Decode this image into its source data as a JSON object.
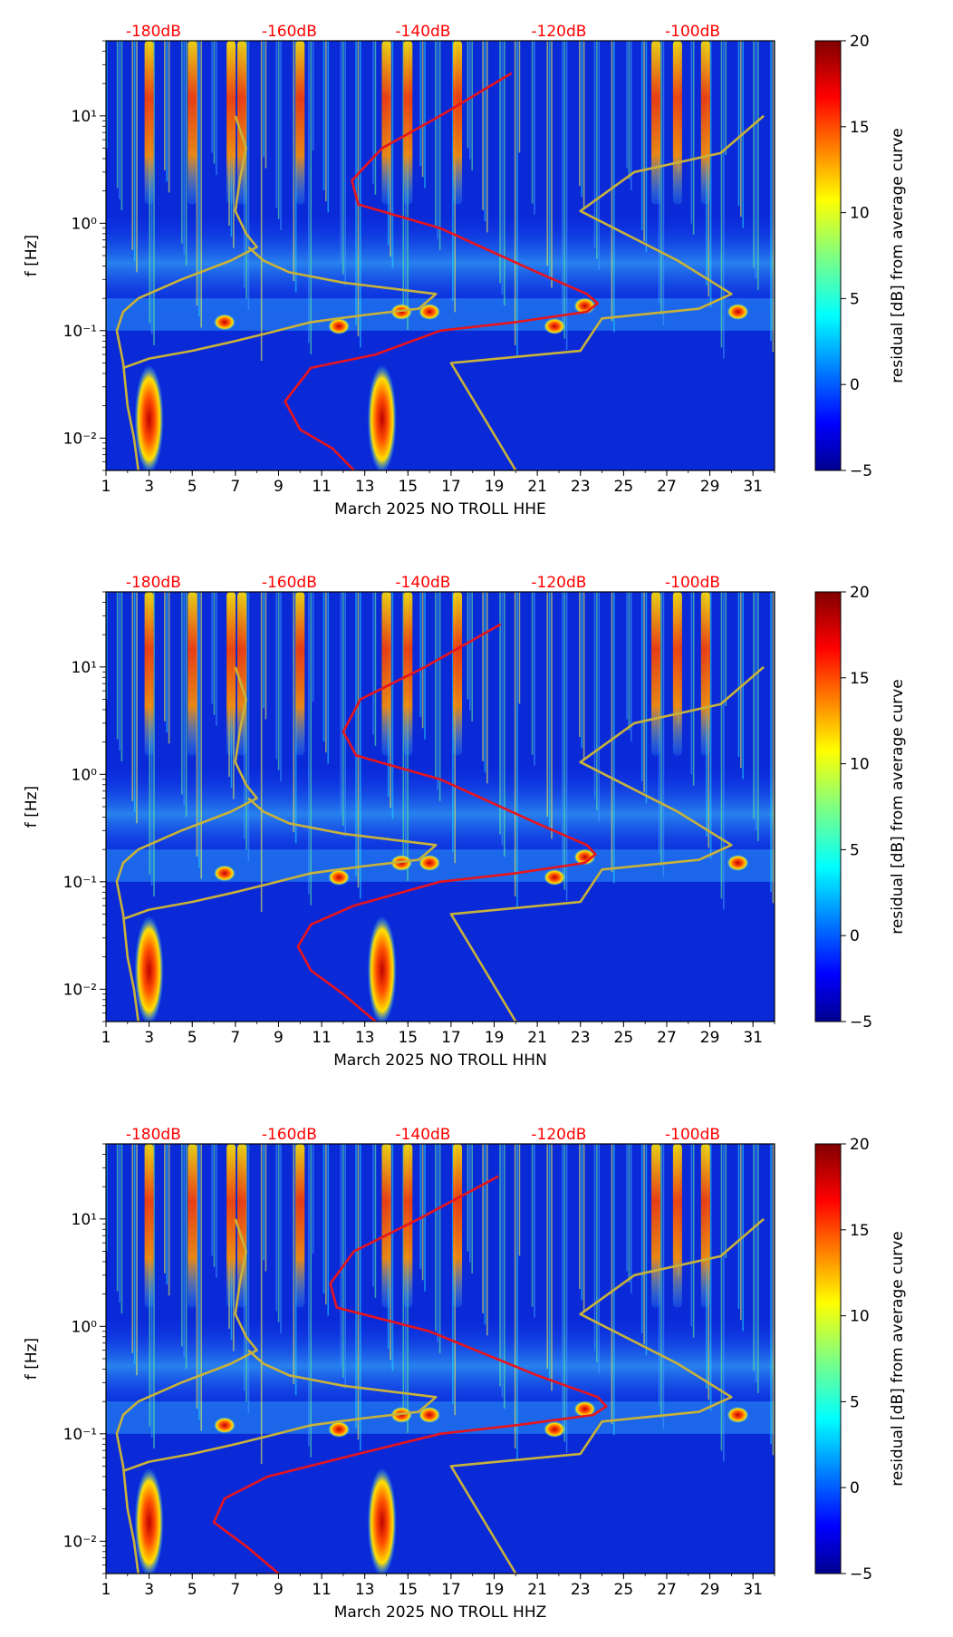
{
  "figure": {
    "colors": {
      "background": "#ffffff",
      "axis": "#000000",
      "top_labels": "#ff0000",
      "median_curve": "#e8141c",
      "noise_model_curves": "#c8b23a"
    },
    "colormap": "jet",
    "colorbar": {
      "label": "residual [dB] from average curve",
      "range": [
        -5,
        20
      ],
      "ticks": [
        "20",
        "15",
        "10",
        "5",
        "0",
        "−5"
      ],
      "tick_values": [
        20,
        15,
        10,
        5,
        0,
        -5
      ]
    }
  },
  "chart_data": [
    {
      "type": "heatmap",
      "component": "HHE",
      "xlabel": "March 2025 NO TROLL  HHE",
      "ylabel": "f [Hz]",
      "y_scale": "log",
      "xlim": [
        1,
        32
      ],
      "ylim": [
        0.005,
        50
      ],
      "x_ticks": [
        1,
        3,
        5,
        7,
        9,
        11,
        13,
        15,
        17,
        19,
        21,
        23,
        25,
        27,
        29,
        31
      ],
      "x_tick_labels": [
        "1",
        "3",
        "5",
        "7",
        "9",
        "11",
        "13",
        "15",
        "17",
        "19",
        "21",
        "23",
        "25",
        "27",
        "29",
        "31"
      ],
      "y_tick_values": [
        10,
        1,
        0.1,
        0.01
      ],
      "y_tick_labels": [
        "10¹",
        "10⁰",
        "10⁻¹",
        "10⁻²"
      ],
      "top_axis": {
        "values": [
          3.2,
          9.5,
          15.7,
          22.0,
          28.2
        ],
        "labels": [
          "-180dB",
          "-160dB",
          "-140dB",
          "-120dB",
          "-100dB"
        ]
      },
      "hot_days": [
        3,
        5,
        6.8,
        7.3,
        10,
        14,
        15,
        17.3,
        26.5,
        27.5,
        28.8
      ],
      "median_curve": {
        "name": "median PSD",
        "x": [
          19.8,
          16.5,
          13.8,
          12.4,
          12.7,
          16.5,
          21.0,
          23.3,
          23.8,
          23.3,
          20.0,
          16.5,
          13.5,
          10.5,
          9.3,
          10.0,
          11.5,
          12.5
        ],
        "f": [
          25,
          10,
          5,
          2.5,
          1.5,
          0.9,
          0.35,
          0.22,
          0.18,
          0.15,
          0.12,
          0.1,
          0.06,
          0.045,
          0.022,
          0.012,
          0.008,
          0.005
        ]
      },
      "nlnm_curve": {
        "name": "NLNM",
        "x": [
          7.0,
          7.5,
          7.2,
          7.0,
          7.5,
          8.0,
          6.8,
          4.5,
          2.5,
          1.8,
          1.5,
          1.8,
          2.0,
          2.3,
          2.5
        ],
        "f": [
          10,
          5,
          2.5,
          1.3,
          0.8,
          0.6,
          0.45,
          0.3,
          0.2,
          0.15,
          0.1,
          0.05,
          0.02,
          0.01,
          0.005
        ]
      },
      "nhnm_curve": {
        "name": "NHNM",
        "x": [
          31.5,
          29.5,
          25.5,
          23.0,
          27.5,
          30.0,
          28.5,
          24.0,
          23.0,
          17.0,
          20.0
        ],
        "f": [
          10,
          4.5,
          3.0,
          1.3,
          0.45,
          0.22,
          0.16,
          0.13,
          0.065,
          0.05,
          0.005
        ]
      },
      "nlnm_lower_branch": {
        "x": [
          7.6,
          8.3,
          9.5,
          12.0,
          16.3,
          15.5,
          13.0,
          10.5,
          8.5,
          7.0,
          5.0,
          3.0,
          1.8
        ],
        "f": [
          0.6,
          0.45,
          0.35,
          0.28,
          0.22,
          0.16,
          0.14,
          0.12,
          0.095,
          0.08,
          0.065,
          0.055,
          0.045
        ]
      }
    },
    {
      "type": "heatmap",
      "component": "HHN",
      "xlabel": "March 2025 NO TROLL  HHN",
      "ylabel": "f [Hz]",
      "y_scale": "log",
      "xlim": [
        1,
        32
      ],
      "ylim": [
        0.005,
        50
      ],
      "x_ticks": [
        1,
        3,
        5,
        7,
        9,
        11,
        13,
        15,
        17,
        19,
        21,
        23,
        25,
        27,
        29,
        31
      ],
      "x_tick_labels": [
        "1",
        "3",
        "5",
        "7",
        "9",
        "11",
        "13",
        "15",
        "17",
        "19",
        "21",
        "23",
        "25",
        "27",
        "29",
        "31"
      ],
      "y_tick_values": [
        10,
        1,
        0.1,
        0.01
      ],
      "y_tick_labels": [
        "10¹",
        "10⁰",
        "10⁻¹",
        "10⁻²"
      ],
      "top_axis": {
        "values": [
          3.2,
          9.5,
          15.7,
          22.0,
          28.2
        ],
        "labels": [
          "-180dB",
          "-160dB",
          "-140dB",
          "-120dB",
          "-100dB"
        ]
      },
      "hot_days": [
        3,
        5,
        6.8,
        7.3,
        10,
        14,
        15,
        17.3,
        26.5,
        27.5,
        28.8
      ],
      "median_curve": {
        "name": "median PSD",
        "x": [
          19.3,
          15.8,
          12.8,
          12.0,
          12.6,
          16.5,
          21.0,
          23.3,
          23.7,
          23.2,
          20.0,
          16.5,
          12.5,
          10.5,
          9.9,
          10.5,
          12.0,
          13.5
        ],
        "f": [
          25,
          10,
          5,
          2.5,
          1.5,
          0.9,
          0.35,
          0.22,
          0.18,
          0.15,
          0.12,
          0.1,
          0.06,
          0.04,
          0.025,
          0.015,
          0.009,
          0.005
        ]
      },
      "nlnm_curve": {
        "name": "NLNM",
        "x": [
          7.0,
          7.5,
          7.2,
          7.0,
          7.5,
          8.0,
          6.8,
          4.5,
          2.5,
          1.8,
          1.5,
          1.8,
          2.0,
          2.3,
          2.5
        ],
        "f": [
          10,
          5,
          2.5,
          1.3,
          0.8,
          0.6,
          0.45,
          0.3,
          0.2,
          0.15,
          0.1,
          0.05,
          0.02,
          0.01,
          0.005
        ]
      },
      "nhnm_curve": {
        "name": "NHNM",
        "x": [
          31.5,
          29.5,
          25.5,
          23.0,
          27.5,
          30.0,
          28.5,
          24.0,
          23.0,
          17.0,
          20.0
        ],
        "f": [
          10,
          4.5,
          3.0,
          1.3,
          0.45,
          0.22,
          0.16,
          0.13,
          0.065,
          0.05,
          0.005
        ]
      },
      "nlnm_lower_branch": {
        "x": [
          7.6,
          8.3,
          9.5,
          12.0,
          16.3,
          15.5,
          13.0,
          10.5,
          8.5,
          7.0,
          5.0,
          3.0,
          1.8
        ],
        "f": [
          0.6,
          0.45,
          0.35,
          0.28,
          0.22,
          0.16,
          0.14,
          0.12,
          0.095,
          0.08,
          0.065,
          0.055,
          0.045
        ]
      }
    },
    {
      "type": "heatmap",
      "component": "HHZ",
      "xlabel": "March 2025 NO TROLL  HHZ",
      "ylabel": "f [Hz]",
      "y_scale": "log",
      "xlim": [
        1,
        32
      ],
      "ylim": [
        0.005,
        50
      ],
      "x_ticks": [
        1,
        3,
        5,
        7,
        9,
        11,
        13,
        15,
        17,
        19,
        21,
        23,
        25,
        27,
        29,
        31
      ],
      "x_tick_labels": [
        "1",
        "3",
        "5",
        "7",
        "9",
        "11",
        "13",
        "15",
        "17",
        "19",
        "21",
        "23",
        "25",
        "27",
        "29",
        "31"
      ],
      "y_tick_values": [
        10,
        1,
        0.1,
        0.01
      ],
      "y_tick_labels": [
        "10¹",
        "10⁰",
        "10⁻¹",
        "10⁻²"
      ],
      "top_axis": {
        "values": [
          3.2,
          9.5,
          15.7,
          22.0,
          28.2
        ],
        "labels": [
          "-180dB",
          "-160dB",
          "-140dB",
          "-120dB",
          "-100dB"
        ]
      },
      "hot_days": [
        3,
        5,
        6.8,
        7.3,
        10,
        14,
        15,
        17.3,
        26.5,
        27.5,
        28.8
      ],
      "median_curve": {
        "name": "median PSD",
        "x": [
          19.2,
          15.5,
          12.5,
          11.4,
          11.7,
          16.0,
          21.0,
          23.8,
          24.2,
          23.6,
          20.0,
          16.5,
          12.0,
          8.5,
          6.5,
          6.0,
          7.5,
          9.0
        ],
        "f": [
          25,
          10,
          5,
          2.5,
          1.5,
          0.9,
          0.35,
          0.22,
          0.18,
          0.15,
          0.12,
          0.1,
          0.06,
          0.04,
          0.025,
          0.015,
          0.009,
          0.005
        ]
      },
      "nlnm_curve": {
        "name": "NLNM",
        "x": [
          7.0,
          7.5,
          7.2,
          7.0,
          7.5,
          8.0,
          6.8,
          4.5,
          2.5,
          1.8,
          1.5,
          1.8,
          2.0,
          2.3,
          2.5
        ],
        "f": [
          10,
          5,
          2.5,
          1.3,
          0.8,
          0.6,
          0.45,
          0.3,
          0.2,
          0.15,
          0.1,
          0.05,
          0.02,
          0.01,
          0.005
        ]
      },
      "nhnm_curve": {
        "name": "NHNM",
        "x": [
          31.5,
          29.5,
          25.5,
          23.0,
          27.5,
          30.0,
          28.5,
          24.0,
          23.0,
          17.0,
          20.0
        ],
        "f": [
          10,
          4.5,
          3.0,
          1.3,
          0.45,
          0.22,
          0.16,
          0.13,
          0.065,
          0.05,
          0.005
        ]
      },
      "nlnm_lower_branch": {
        "x": [
          7.6,
          8.3,
          9.5,
          12.0,
          16.3,
          15.5,
          13.0,
          10.5,
          8.5,
          7.0,
          5.0,
          3.0,
          1.8
        ],
        "f": [
          0.6,
          0.45,
          0.35,
          0.28,
          0.22,
          0.16,
          0.14,
          0.12,
          0.095,
          0.08,
          0.065,
          0.055,
          0.045
        ]
      }
    }
  ]
}
